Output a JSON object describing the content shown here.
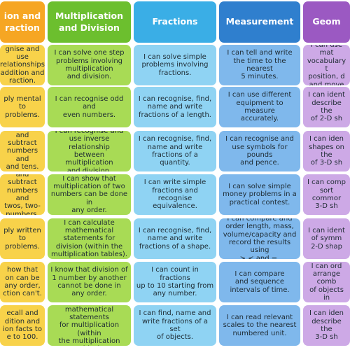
{
  "columns": [
    {
      "key": "addition-subtraction",
      "header": "ion and\nraction",
      "header_color": "#f6a623",
      "cell_color": "#f8d24a",
      "cells": [
        "gnise and use\nrelationships\naddition and\nraction.",
        "ply mental\nto problems.",
        "and subtract\nnumbers and\nand tens.",
        "and subtract\nnumbers and\ntwos, two-\nnumbers.",
        "ply written\nto problems.",
        "how that\non can be\nany order,\nction can't.",
        "ecall and\ndition and\nion facts to\ne to 100."
      ]
    },
    {
      "key": "multiplication-division",
      "header": "Multiplication\nand Division",
      "header_color": "#6cbf2e",
      "cell_color": "#a8db55",
      "cells": [
        "I can solve one step\nproblems involving\nmultiplication\nand division.",
        "I can recognise odd and\neven numbers.",
        "I can recognise and\nuse inverse relationship\nbetween multiplication\nand division.",
        "I can show that\nmultiplication of two\nnumbers can be done in\nany order.",
        "I can calculate\nmathematical\nstatements for\ndivision (within the\nmultiplication tables).",
        "I know that division of\n1 number by another\ncannot be done in\nany order.",
        "I can calculate\nmathematical statements\nfor multiplication (within\nthe multiplication tables)."
      ]
    },
    {
      "key": "fractions",
      "header": "Fractions",
      "header_color": "#3aaee6",
      "cell_color": "#8fd3f3",
      "cells": [
        "I can solve simple\nproblems involving\nfractions.",
        "I can recognise, find,\nname and write\nfractions of a length.",
        "I can recognise, find,\nname and write\nfractions of a quantity.",
        "I can write simple\nfractions and recognise\nequivalence.",
        "I can recognise, find,\nname and write\nfractions of a shape.",
        "I can count in fractions\nup to 10 starting from\nany number.",
        "I can find, name and\nwrite fractions of a set\nof objects."
      ]
    },
    {
      "key": "measurement",
      "header": "Measurement",
      "header_color": "#2f7fce",
      "cell_color": "#7fb8ec",
      "cells": [
        "I can tell and write\nthe time to the nearest\n5 minutes.",
        "I can use different\nequipment to measure\naccurately.",
        "I can recognise and\nuse symbols for pounds\nand pence.",
        "I can solve simple\nmoney problems in a\npractical contest.",
        "I can compare and\norder length, mass,\nvolume/capacity and\nrecord the results using\n>,< and =.",
        "I can compare\nand sequence\nintervals of time.",
        "I can read relevant\nscales to the nearest\nnumbered unit."
      ]
    },
    {
      "key": "geometry",
      "header": "Geom",
      "header_color": "#9b59c2",
      "cell_color": "#cda9e6",
      "cells": [
        "I can use mat\nvocabulary t\nposition, d\nand move",
        "I can ident\ndescribe the\nof 2-D sh",
        "I can iden\nshapes on the\nof 3-D sh",
        "I can comp\nsort commor\n3-D sh",
        "I can ident\nof symm\n2-D shap",
        "I can ord\narrange comb\nof objects in",
        "I can iden\ndescribe the\n3-D sh"
      ]
    }
  ]
}
